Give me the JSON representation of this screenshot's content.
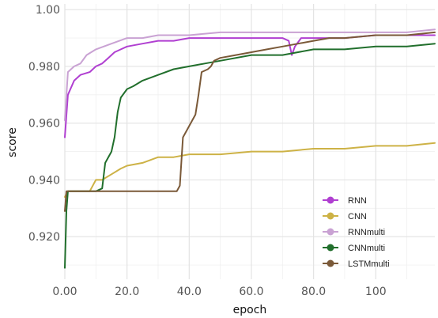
{
  "chart_data": {
    "type": "line",
    "xlabel": "epoch",
    "ylabel": "score",
    "xlim": [
      0,
      119
    ],
    "ylim": [
      0.905,
      1.002
    ],
    "x_ticks": [
      0,
      20,
      40,
      60,
      80,
      100
    ],
    "x_tick_labels": [
      "0.00",
      "20.0",
      "40.0",
      "60.0",
      "80.0",
      "100"
    ],
    "y_ticks": [
      0.92,
      0.94,
      0.96,
      0.98,
      1.0
    ],
    "y_tick_labels": [
      "0.920",
      "0.940",
      "0.960",
      "0.980",
      "1.00"
    ],
    "grid": true,
    "legend_position": "bottom-right",
    "series": [
      {
        "name": "RNN",
        "color": "#b03fd1",
        "points": [
          [
            0,
            0.955
          ],
          [
            1,
            0.97
          ],
          [
            3,
            0.975
          ],
          [
            5,
            0.977
          ],
          [
            8,
            0.978
          ],
          [
            10,
            0.98
          ],
          [
            12,
            0.981
          ],
          [
            14,
            0.983
          ],
          [
            16,
            0.985
          ],
          [
            18,
            0.986
          ],
          [
            20,
            0.987
          ],
          [
            25,
            0.988
          ],
          [
            30,
            0.989
          ],
          [
            35,
            0.989
          ],
          [
            40,
            0.99
          ],
          [
            50,
            0.99
          ],
          [
            60,
            0.99
          ],
          [
            65,
            0.99
          ],
          [
            70,
            0.99
          ],
          [
            72,
            0.989
          ],
          [
            73,
            0.984
          ],
          [
            74,
            0.987
          ],
          [
            76,
            0.99
          ],
          [
            80,
            0.99
          ],
          [
            90,
            0.99
          ],
          [
            100,
            0.991
          ],
          [
            110,
            0.991
          ],
          [
            119,
            0.991
          ]
        ]
      },
      {
        "name": "CNN",
        "color": "#cdb246",
        "points": [
          [
            0,
            0.934
          ],
          [
            1,
            0.936
          ],
          [
            5,
            0.936
          ],
          [
            8,
            0.936
          ],
          [
            10,
            0.94
          ],
          [
            12,
            0.94
          ],
          [
            15,
            0.942
          ],
          [
            18,
            0.944
          ],
          [
            20,
            0.945
          ],
          [
            25,
            0.946
          ],
          [
            30,
            0.948
          ],
          [
            35,
            0.948
          ],
          [
            40,
            0.949
          ],
          [
            45,
            0.949
          ],
          [
            50,
            0.949
          ],
          [
            60,
            0.95
          ],
          [
            70,
            0.95
          ],
          [
            80,
            0.951
          ],
          [
            90,
            0.951
          ],
          [
            100,
            0.952
          ],
          [
            110,
            0.952
          ],
          [
            119,
            0.953
          ]
        ]
      },
      {
        "name": "RNNmulti",
        "color": "#c9a2d3",
        "points": [
          [
            0,
            0.961
          ],
          [
            1,
            0.978
          ],
          [
            3,
            0.98
          ],
          [
            5,
            0.981
          ],
          [
            7,
            0.984
          ],
          [
            10,
            0.986
          ],
          [
            15,
            0.988
          ],
          [
            20,
            0.99
          ],
          [
            25,
            0.99
          ],
          [
            30,
            0.991
          ],
          [
            40,
            0.991
          ],
          [
            50,
            0.992
          ],
          [
            60,
            0.992
          ],
          [
            70,
            0.992
          ],
          [
            80,
            0.992
          ],
          [
            90,
            0.992
          ],
          [
            100,
            0.992
          ],
          [
            110,
            0.992
          ],
          [
            119,
            0.993
          ]
        ]
      },
      {
        "name": "CNNmulti",
        "color": "#216f2c",
        "points": [
          [
            0,
            0.909
          ],
          [
            0.5,
            0.929
          ],
          [
            1,
            0.936
          ],
          [
            5,
            0.936
          ],
          [
            10,
            0.936
          ],
          [
            12,
            0.937
          ],
          [
            13,
            0.946
          ],
          [
            15,
            0.95
          ],
          [
            16,
            0.955
          ],
          [
            17,
            0.964
          ],
          [
            18,
            0.969
          ],
          [
            20,
            0.972
          ],
          [
            22,
            0.973
          ],
          [
            25,
            0.975
          ],
          [
            30,
            0.977
          ],
          [
            35,
            0.979
          ],
          [
            40,
            0.98
          ],
          [
            45,
            0.981
          ],
          [
            50,
            0.982
          ],
          [
            60,
            0.984
          ],
          [
            70,
            0.984
          ],
          [
            80,
            0.986
          ],
          [
            90,
            0.986
          ],
          [
            100,
            0.987
          ],
          [
            110,
            0.987
          ],
          [
            119,
            0.988
          ]
        ]
      },
      {
        "name": "LSTMmulti",
        "color": "#7a5938",
        "points": [
          [
            0,
            0.929
          ],
          [
            0.5,
            0.936
          ],
          [
            10,
            0.936
          ],
          [
            20,
            0.936
          ],
          [
            30,
            0.936
          ],
          [
            36,
            0.936
          ],
          [
            37,
            0.938
          ],
          [
            38,
            0.955
          ],
          [
            39,
            0.957
          ],
          [
            41,
            0.961
          ],
          [
            42,
            0.963
          ],
          [
            43,
            0.97
          ],
          [
            44,
            0.978
          ],
          [
            46,
            0.979
          ],
          [
            47,
            0.98
          ],
          [
            48,
            0.982
          ],
          [
            50,
            0.983
          ],
          [
            55,
            0.984
          ],
          [
            60,
            0.985
          ],
          [
            65,
            0.986
          ],
          [
            70,
            0.987
          ],
          [
            75,
            0.988
          ],
          [
            80,
            0.989
          ],
          [
            85,
            0.99
          ],
          [
            90,
            0.99
          ],
          [
            100,
            0.991
          ],
          [
            110,
            0.991
          ],
          [
            119,
            0.992
          ]
        ]
      }
    ]
  }
}
